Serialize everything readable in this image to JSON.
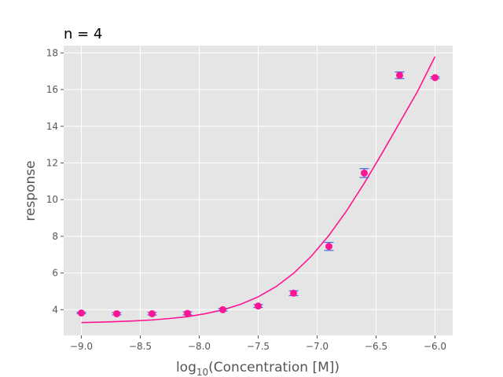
{
  "chart_data": {
    "type": "scatter",
    "title": "n = 4",
    "xlabel": {
      "prefix": "log",
      "subscript": "10",
      "suffix": "(Concentration [M])"
    },
    "ylabel": "response",
    "xlim": [
      -9.15,
      -5.85
    ],
    "ylim": [
      2.6,
      18.4
    ],
    "xticks": [
      -9.0,
      -8.5,
      -8.0,
      -7.5,
      -7.0,
      -6.5,
      -6.0
    ],
    "xtick_labels": [
      "−9.0",
      "−8.5",
      "−8.0",
      "−7.5",
      "−7.0",
      "−6.5",
      "−6.0"
    ],
    "yticks": [
      4,
      6,
      8,
      10,
      12,
      14,
      16,
      18
    ],
    "ytick_labels": [
      "4",
      "6",
      "8",
      "10",
      "12",
      "14",
      "16",
      "18"
    ],
    "grid": true,
    "colors": {
      "background": "#e5e5e5",
      "grid": "#ffffff",
      "points": "#ff1493",
      "fit": "#ff1493",
      "errorbars": "#4169e1"
    },
    "points": {
      "x": [
        -9.0,
        -8.7,
        -8.4,
        -8.1,
        -7.8,
        -7.5,
        -7.2,
        -6.9,
        -6.6,
        -6.3,
        -6.0
      ],
      "y": [
        3.82,
        3.78,
        3.78,
        3.8,
        4.0,
        4.2,
        4.9,
        7.45,
        11.45,
        16.78,
        16.65
      ],
      "yerr": [
        0.04,
        0.06,
        0.07,
        0.08,
        0.07,
        0.08,
        0.13,
        0.22,
        0.24,
        0.18,
        0.05
      ]
    },
    "fit": {
      "model": "4PL",
      "x": [
        -9.0,
        -8.85,
        -8.7,
        -8.55,
        -8.4,
        -8.25,
        -8.1,
        -7.95,
        -7.8,
        -7.65,
        -7.5,
        -7.35,
        -7.2,
        -7.05,
        -6.9,
        -6.75,
        -6.6,
        -6.45,
        -6.3,
        -6.15,
        -6.0
      ],
      "y": [
        3.3,
        3.32,
        3.35,
        3.39,
        3.44,
        3.52,
        3.62,
        3.78,
        3.99,
        4.29,
        4.7,
        5.25,
        5.98,
        6.91,
        8.05,
        9.39,
        10.9,
        12.52,
        14.2,
        15.88,
        17.8
      ]
    }
  }
}
